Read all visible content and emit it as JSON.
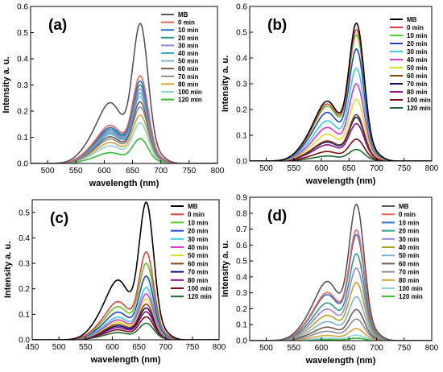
{
  "figure": {
    "legend_labels": [
      "MB",
      "0 min",
      "10 min",
      "20 min",
      "30 min",
      "40 min",
      "50 min",
      "60 min",
      "70 min",
      "80 min",
      "100 min",
      "120 min"
    ],
    "xlabel": "wavelength (nm)",
    "ylabel": "Intensity a. u."
  },
  "chart_data": [
    {
      "type": "line",
      "panel_label": "(a)",
      "xlabel": "wavelength (nm)",
      "ylabel": "Intensity a. u.",
      "xlim": [
        470,
        800
      ],
      "ylim": [
        0,
        0.6
      ],
      "xticks": [
        500,
        550,
        600,
        650,
        700,
        750,
        800
      ],
      "yticks": [
        0.0,
        0.1,
        0.2,
        0.3,
        0.4,
        0.5,
        0.6
      ],
      "ytick_labels": [
        "0.0",
        "0.1",
        "0.2",
        "0.3",
        "0.4",
        "0.5",
        "0.6"
      ],
      "legend_position": "right",
      "series": [
        {
          "name": "MB",
          "peak": 0.535,
          "color": "#555555"
        },
        {
          "name": "0 min",
          "peak": 0.335,
          "color": "#e8635e"
        },
        {
          "name": "10 min",
          "peak": 0.315,
          "color": "#2f6fcc"
        },
        {
          "name": "20 min",
          "peak": 0.3,
          "color": "#2a9a8a"
        },
        {
          "name": "30 min",
          "peak": 0.285,
          "color": "#9a83d8"
        },
        {
          "name": "40 min",
          "peak": 0.27,
          "color": "#3aa6c8"
        },
        {
          "name": "50 min",
          "peak": 0.255,
          "color": "#7fb0da"
        },
        {
          "name": "60 min",
          "peak": 0.235,
          "color": "#6e5a50"
        },
        {
          "name": "70 min",
          "peak": 0.215,
          "color": "#8a8a8a"
        },
        {
          "name": "80 min",
          "peak": 0.185,
          "color": "#d4a43a"
        },
        {
          "name": "100 min",
          "peak": 0.155,
          "color": "#8fd0e0"
        },
        {
          "name": "120 min",
          "peak": 0.095,
          "color": "#33bb33"
        }
      ]
    },
    {
      "type": "line",
      "panel_label": "(b)",
      "xlabel": "wavelength (nm)",
      "ylabel": "Intensity a. u.",
      "xlim": [
        470,
        800
      ],
      "ylim": [
        0,
        0.6
      ],
      "xticks": [
        500,
        550,
        600,
        650,
        700,
        750,
        800
      ],
      "yticks": [
        0.0,
        0.1,
        0.2,
        0.3,
        0.4,
        0.5,
        0.6
      ],
      "ytick_labels": [
        "0.0",
        "0.1",
        "0.2",
        "0.3",
        "0.4",
        "0.5",
        "0.6"
      ],
      "legend_position": "right",
      "series": [
        {
          "name": "MB",
          "peak": 0.535,
          "color": "#000000"
        },
        {
          "name": "0 min",
          "peak": 0.51,
          "color": "#e84040"
        },
        {
          "name": "10 min",
          "peak": 0.49,
          "color": "#55cc22"
        },
        {
          "name": "20 min",
          "peak": 0.435,
          "color": "#2244cc"
        },
        {
          "name": "30 min",
          "peak": 0.36,
          "color": "#33ccee"
        },
        {
          "name": "40 min",
          "peak": 0.3,
          "color": "#dd33cc"
        },
        {
          "name": "50 min",
          "peak": 0.24,
          "color": "#dddd22"
        },
        {
          "name": "60 min",
          "peak": 0.18,
          "color": "#884411"
        },
        {
          "name": "70 min",
          "peak": 0.17,
          "color": "#0a0a80"
        },
        {
          "name": "80 min",
          "peak": 0.145,
          "color": "#8a1090"
        },
        {
          "name": "100 min",
          "peak": 0.085,
          "color": "#7a1010"
        },
        {
          "name": "120 min",
          "peak": 0.045,
          "color": "#226633"
        }
      ]
    },
    {
      "type": "line",
      "panel_label": "(c)",
      "xlabel": "wavelength (nm)",
      "ylabel": "Intensity a. u.",
      "xlim": [
        450,
        800
      ],
      "ylim": [
        0,
        0.55
      ],
      "xticks": [
        450,
        500,
        550,
        600,
        650,
        700,
        750,
        800
      ],
      "yticks": [
        0.0,
        0.1,
        0.2,
        0.3,
        0.4,
        0.5
      ],
      "ytick_labels": [
        "0.0",
        "0.1",
        "0.2",
        "0.3",
        "0.4",
        "0.5"
      ],
      "legend_position": "right",
      "series": [
        {
          "name": "MB",
          "peak": 0.54,
          "color": "#000000"
        },
        {
          "name": "0 min",
          "peak": 0.345,
          "color": "#e84040"
        },
        {
          "name": "10 min",
          "peak": 0.3,
          "color": "#55cc22"
        },
        {
          "name": "20 min",
          "peak": 0.25,
          "color": "#2244cc"
        },
        {
          "name": "30 min",
          "peak": 0.205,
          "color": "#33ccee"
        },
        {
          "name": "40 min",
          "peak": 0.18,
          "color": "#dd33cc"
        },
        {
          "name": "50 min",
          "peak": 0.16,
          "color": "#dddd22"
        },
        {
          "name": "60 min",
          "peak": 0.14,
          "color": "#884411"
        },
        {
          "name": "70 min",
          "peak": 0.125,
          "color": "#0a0a80"
        },
        {
          "name": "80 min",
          "peak": 0.11,
          "color": "#8a1090"
        },
        {
          "name": "100 min",
          "peak": 0.09,
          "color": "#7a1010"
        },
        {
          "name": "120 min",
          "peak": 0.065,
          "color": "#226633"
        }
      ]
    },
    {
      "type": "line",
      "panel_label": "(d)",
      "xlabel": "wavelength (nm)",
      "ylabel": "Intensity a. u.",
      "xlim": [
        470,
        800
      ],
      "ylim": [
        0,
        0.9
      ],
      "xticks": [
        500,
        550,
        600,
        650,
        700,
        750,
        800
      ],
      "yticks": [
        0.0,
        0.1,
        0.2,
        0.3,
        0.4,
        0.5,
        0.6,
        0.7,
        0.8,
        0.9
      ],
      "ytick_labels": [
        "0.0",
        "0.1",
        "0.2",
        "0.3",
        "0.4",
        "0.5",
        "0.6",
        "0.7",
        "0.8",
        "0.9"
      ],
      "legend_position": "right",
      "series": [
        {
          "name": "MB",
          "peak": 0.855,
          "color": "#555555"
        },
        {
          "name": "0 min",
          "peak": 0.695,
          "color": "#e8635e"
        },
        {
          "name": "10 min",
          "peak": 0.665,
          "color": "#2f6fcc"
        },
        {
          "name": "20 min",
          "peak": 0.545,
          "color": "#2a9a8a"
        },
        {
          "name": "30 min",
          "peak": 0.455,
          "color": "#9a83d8"
        },
        {
          "name": "40 min",
          "peak": 0.365,
          "color": "#b8a020"
        },
        {
          "name": "50 min",
          "peak": 0.275,
          "color": "#7fb0da"
        },
        {
          "name": "60 min",
          "peak": 0.195,
          "color": "#6e5a50"
        },
        {
          "name": "70 min",
          "peak": 0.135,
          "color": "#8a8a8a"
        },
        {
          "name": "80 min",
          "peak": 0.075,
          "color": "#d4a43a"
        },
        {
          "name": "100 min",
          "peak": 0.035,
          "color": "#8fd0e0"
        },
        {
          "name": "120 min",
          "peak": 0.015,
          "color": "#33bb33"
        }
      ]
    }
  ]
}
